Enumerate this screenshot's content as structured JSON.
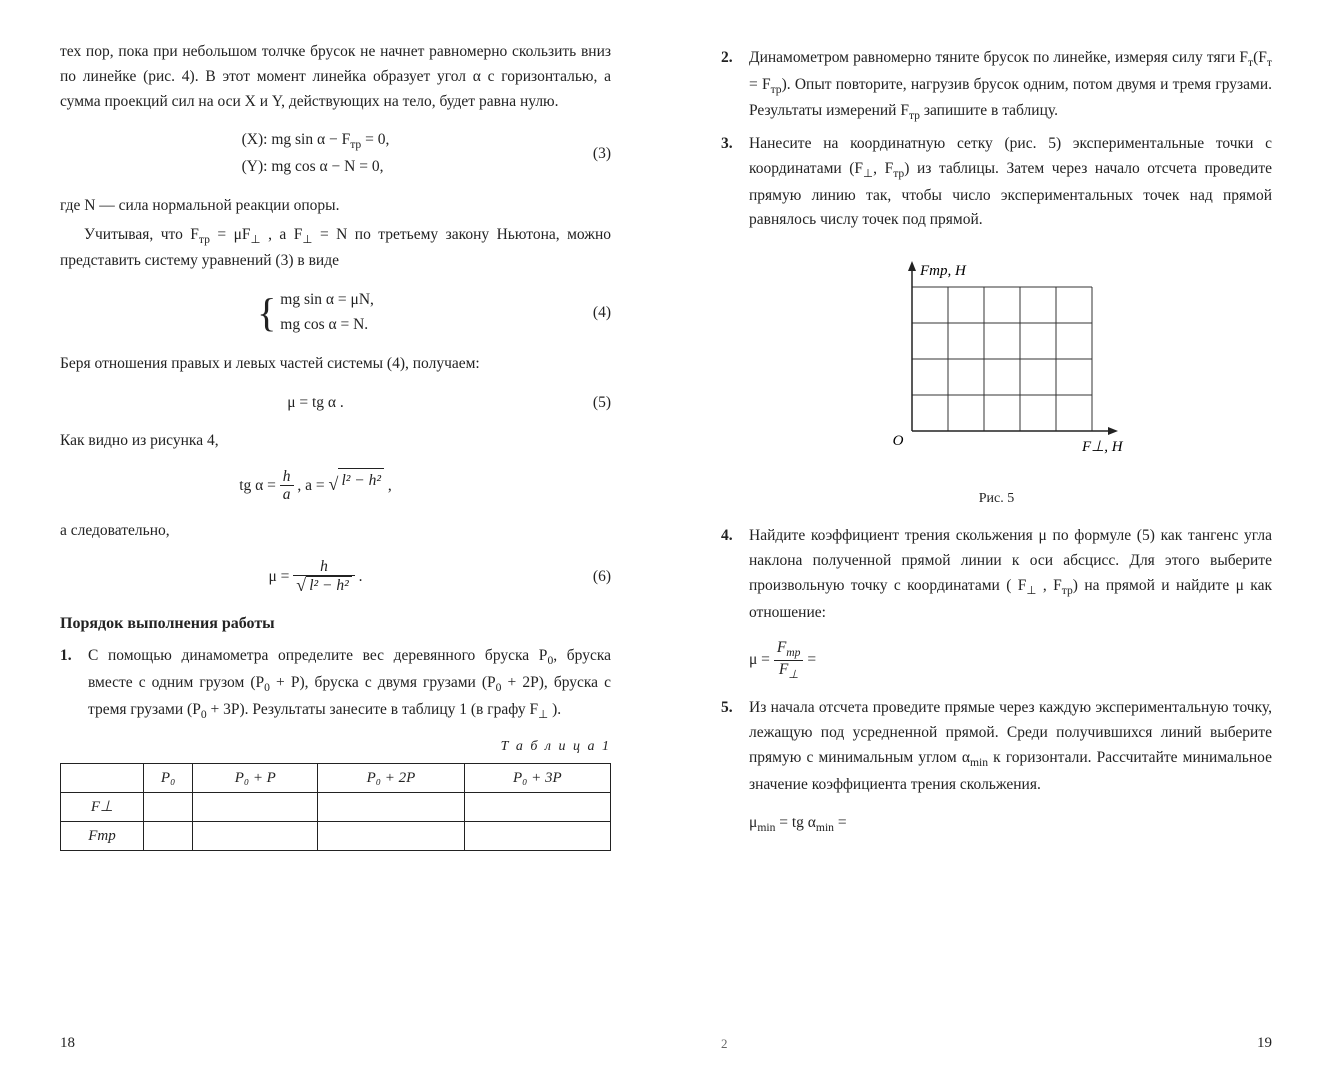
{
  "left": {
    "para1": "тех пор, пока при небольшом толчке брусок не начнет равномерно скользить вниз по линейке (рис. 4). В этот момент линейка образует угол α с горизонталью, а сумма проекций сил на оси X и Y, действующих на тело, будет равна нулю.",
    "eq3_line1": "(X):  mg sin α − F",
    "eq3_line1b": " = 0,",
    "eq3_line2": "(Y):  mg cos α − N = 0,",
    "eq3_num": "(3)",
    "para2a": "где N — сила нормальной реакции опоры.",
    "para2b_1": "Учитывая, что  F",
    "para2b_2": " = μF",
    "para2b_3": " ,  а  F",
    "para2b_4": " = N  по третьему закону Ньютона, можно представить систему уравнений (3) в виде",
    "eq4_line1": "mg sin α = μN,",
    "eq4_line2": "mg cos α = N.",
    "eq4_num": "(4)",
    "para3": "Беря отношения правых и левых частей системы (4), получаем:",
    "eq5": "μ = tg α .",
    "eq5_num": "(5)",
    "para4": "Как видно из рисунка 4,",
    "eq_tg_prefix": "tg α = ",
    "eq_tg_h": "h",
    "eq_tg_a": "a",
    "eq_tg_mid": " ,   a = ",
    "eq_tg_sqrt": "l² − h²",
    "eq_tg_suffix": " ,",
    "para5": "а следовательно,",
    "eq6_mu": "μ = ",
    "eq6_h": "h",
    "eq6_sqrt": "l² − h²",
    "eq6_num": "(6)",
    "section": "Порядок выполнения работы",
    "step1_num": "1.",
    "step1_a": "С помощью динамометра определите вес деревянного бруска P",
    "step1_b": ", бруска вместе с одним грузом (P",
    "step1_c": " + P), бруска с двумя грузами (P",
    "step1_d": " + 2P), бруска с тремя грузами (P",
    "step1_e": " + 3P). Результаты занесите в таблицу 1 (в графу F",
    "step1_f": " ).",
    "table_caption": "Т а б л и ц а  1",
    "th1": "P₀",
    "th2": "P₀ + P",
    "th3": "P₀ + 2P",
    "th4": "P₀ + 3P",
    "row1": "F⊥",
    "row2": "Fтр",
    "pagenum": "18"
  },
  "right": {
    "step2_num": "2.",
    "step2_a": "Динамометром равномерно тяните брусок по линейке, измеряя силу тяги F",
    "step2_b": "(F",
    "step2_c": " = F",
    "step2_d": "). Опыт повторите, нагрузив брусок одним, потом двумя и тремя грузами. Результаты измерений F",
    "step2_e": " запишите в таблицу.",
    "step3_num": "3.",
    "step3_a": "Нанесите на координатную сетку (рис. 5) экспериментальные точки с координатами (F",
    "step3_b": ", F",
    "step3_c": ") из таблицы. Затем через начало отсчета проведите прямую линию так, чтобы число экспериментальных точек над прямой равнялось числу точек под прямой.",
    "fig5_ylabel": "Fтр, Н",
    "fig5_xlabel": "F⊥, Н",
    "fig5_origin": "O",
    "fig5_caption": "Рис. 5",
    "fig5": {
      "cols": 5,
      "rows": 4,
      "cell": 36,
      "axis_color": "#222",
      "grid_color": "#333",
      "grid_width": 1
    },
    "step4_num": "4.",
    "step4_a": "Найдите коэффициент трения скольжения μ по формуле (5) как тангенс угла наклона полученной прямой линии к оси абсцисс. Для этого выберите произвольную точку с координатами ( F",
    "step4_b": " , F",
    "step4_c": ") на прямой и найдите μ как отношение:",
    "eq_mu_prefix": "μ = ",
    "eq_mu_num": "Fтр",
    "eq_mu_den": "F⊥",
    "eq_mu_suffix": " =",
    "step5_num": "5.",
    "step5_a": "Из начала отсчета проведите прямые через каждую экспериментальную точку, лежащую под усредненной прямой. Среди получившихся линий выберите прямую с минимальным углом α",
    "step5_b": " к горизонтали. Рассчитайте минимальное значение коэффициента трения скольжения.",
    "eq_min": "μmin = tg αmin =",
    "sig": "2",
    "pagenum": "19"
  }
}
